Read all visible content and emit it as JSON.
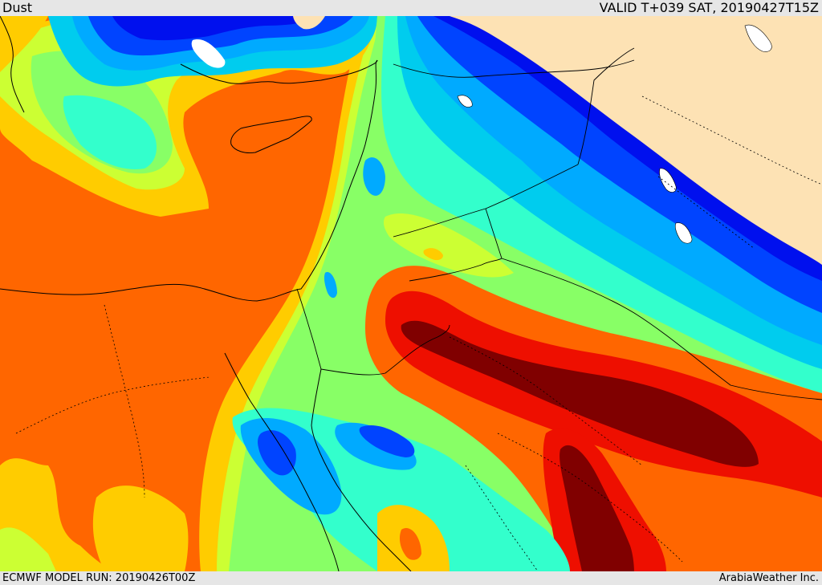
{
  "header": {
    "title": "Dust",
    "valid": "VALID T+039 SAT, 20190427T15Z"
  },
  "footer": {
    "model_run": "ECMWF MODEL RUN: 20190426T00Z",
    "credit": "ArabiaWeather Inc."
  },
  "palette": {
    "land_no_data": "#fde2b4",
    "dark_blue": "#0010ee",
    "blue": "#0044ff",
    "light_blue": "#00aaff",
    "cyan": "#00ccee",
    "aqua": "#33ffcc",
    "light_green": "#88ff66",
    "yellow_green": "#ccff33",
    "yellow": "#ffcc00",
    "orange": "#ff6600",
    "red": "#ee0f00",
    "dark_red": "#800000",
    "water_white": "#ffffff",
    "borders": "#000000"
  }
}
